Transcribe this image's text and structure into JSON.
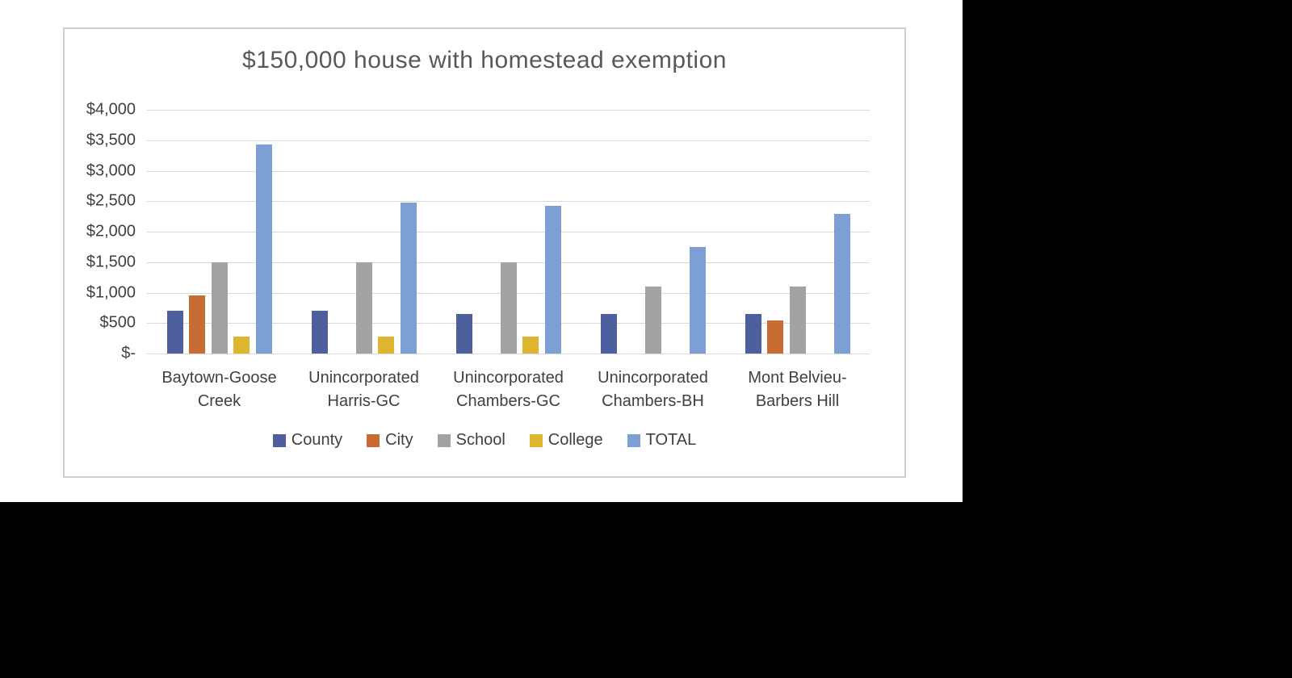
{
  "page": {
    "background_color": "#000000",
    "panel_background": "#ffffff",
    "panel_border_color": "#d0cece"
  },
  "chart_data": {
    "type": "bar",
    "title": "$150,000 house with homestead exemption",
    "title_color": "#595959",
    "categories": [
      "Baytown-Goose Creek",
      "Unincorporated Harris-GC",
      "Unincorporated Chambers-GC",
      "Unincorporated Chambers-BH",
      "Mont Belvieu-Barbers Hill"
    ],
    "category_label_lines": [
      [
        "Baytown-Goose",
        "Creek"
      ],
      [
        "Unincorporated",
        "Harris-GC"
      ],
      [
        "Unincorporated",
        "Chambers-GC"
      ],
      [
        "Unincorporated",
        "Chambers-BH"
      ],
      [
        "Mont Belvieu-",
        "Barbers Hill"
      ]
    ],
    "series": [
      {
        "name": "County",
        "color": "#4E5F9D",
        "values": [
          700,
          700,
          650,
          650,
          650
        ]
      },
      {
        "name": "City",
        "color": "#C76C35",
        "values": [
          950,
          0,
          0,
          0,
          540
        ]
      },
      {
        "name": "School",
        "color": "#A3A3A3",
        "values": [
          1500,
          1500,
          1500,
          1100,
          1100
        ]
      },
      {
        "name": "College",
        "color": "#DDB52F",
        "values": [
          280,
          280,
          280,
          0,
          0
        ]
      },
      {
        "name": "TOTAL",
        "color": "#7C9FD4",
        "values": [
          3430,
          2480,
          2430,
          1750,
          2290
        ]
      }
    ],
    "ylim": [
      0,
      4000
    ],
    "y_tick_step": 500,
    "y_tick_labels_top_down": [
      "$4,000",
      "$3,500",
      "$3,000",
      "$2,500",
      "$2,000",
      "$1,500",
      "$1,000",
      "$500",
      "$-"
    ],
    "xlabel": "",
    "ylabel": "",
    "grid": true,
    "gridline_color": "#d9d9d9",
    "axis_text_color": "#404040",
    "legend_position": "bottom"
  }
}
